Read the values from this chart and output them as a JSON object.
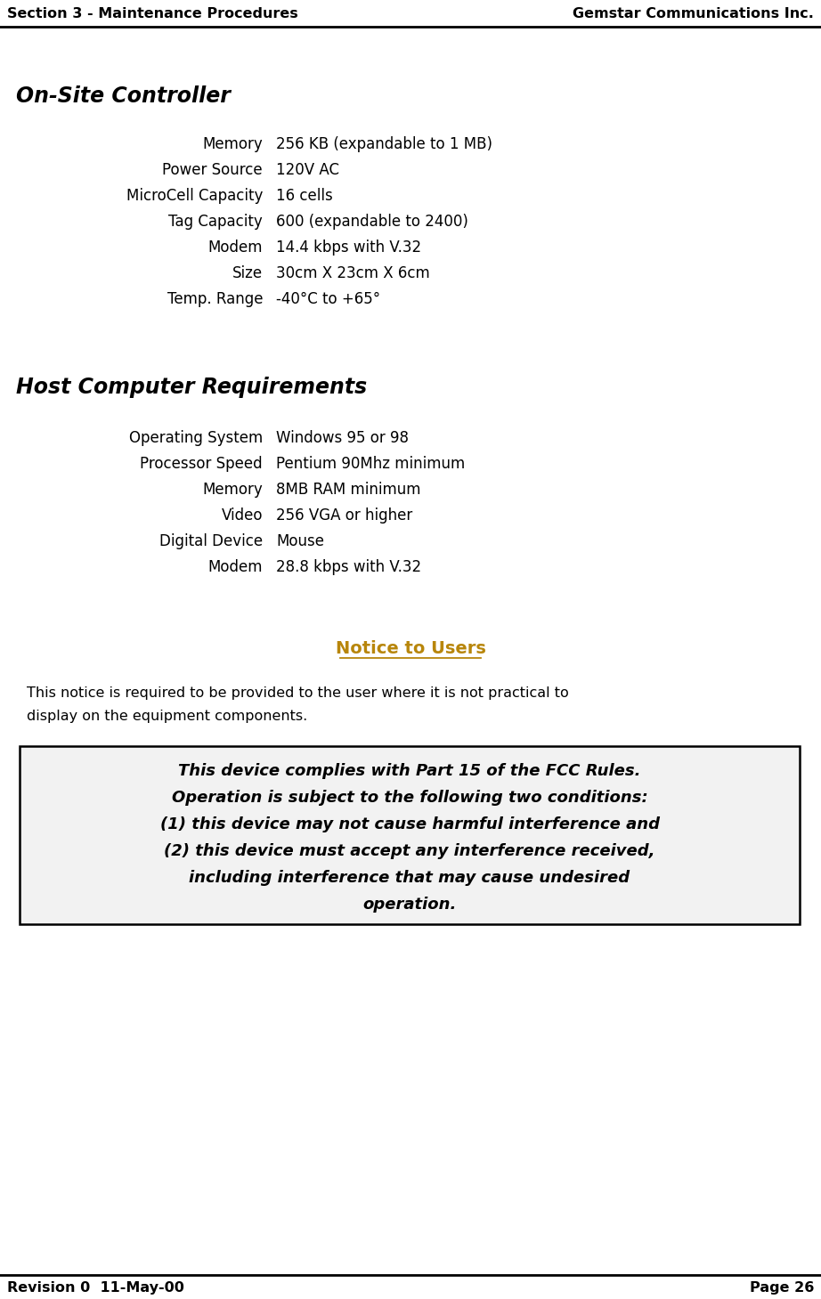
{
  "header_left": "Section 3 - Maintenance Procedures",
  "header_right": "Gemstar Communications Inc.",
  "footer_left": "Revision 0  11-May-00",
  "footer_right": "Page 26",
  "section1_title": "On-Site Controller",
  "section1_rows": [
    [
      "Memory",
      "256 KB (expandable to 1 MB)"
    ],
    [
      "Power Source",
      "120V AC"
    ],
    [
      "MicroCell Capacity",
      "16 cells"
    ],
    [
      "Tag Capacity",
      "600 (expandable to 2400)"
    ],
    [
      "Modem",
      "14.4 kbps with V.32"
    ],
    [
      "Size",
      "30cm X 23cm X 6cm"
    ],
    [
      "Temp. Range",
      "-40°C to +65°"
    ]
  ],
  "section2_title": "Host Computer Requirements",
  "section2_rows": [
    [
      "Operating System",
      "Windows 95 or 98"
    ],
    [
      "Processor Speed",
      "Pentium 90Mhz minimum"
    ],
    [
      "Memory",
      "8MB RAM minimum"
    ],
    [
      "Video",
      "256 VGA or higher"
    ],
    [
      "Digital Device",
      "Mouse"
    ],
    [
      "Modem",
      "28.8 kbps with V.32"
    ]
  ],
  "notice_title": "Notice to Users",
  "notice_intro_line1": "This notice is required to be provided to the user where it is not practical to",
  "notice_intro_line2": "display on the equipment components.",
  "notice_box_lines": [
    "This device complies with Part 15 of the FCC Rules.",
    "Operation is subject to the following two conditions:",
    "(1) this device may not cause harmful interference and",
    "(2) this device must accept any interference received,",
    "including interference that may cause undesired",
    "operation."
  ],
  "bg_color": "#ffffff",
  "text_color": "#000000",
  "notice_title_color": "#b8860b",
  "box_bg_color": "#f2f2f2"
}
